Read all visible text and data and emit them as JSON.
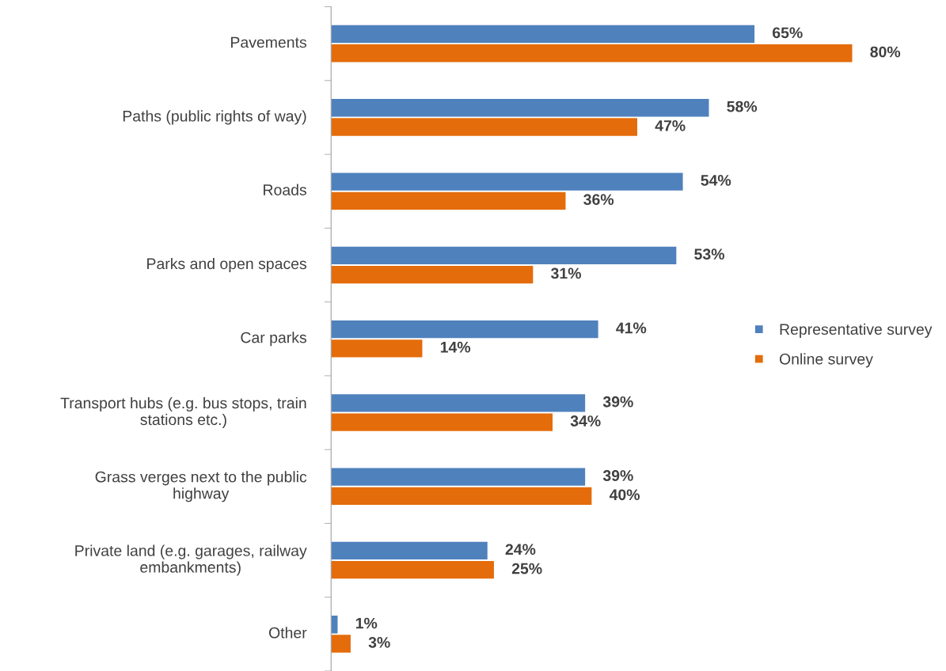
{
  "chart_data": {
    "type": "bar",
    "orientation": "horizontal",
    "categories": [
      "Pavements",
      "Paths (public rights of way)",
      "Roads",
      "Parks and open spaces",
      "Car parks",
      "Transport hubs (e.g. bus stops, train\nstations etc.)",
      "Grass verges next to the public\nhighway",
      "Private land (e.g. garages, railway\nembankments)",
      "Other"
    ],
    "series": [
      {
        "name": "Representative survey",
        "color": "#4f81bd",
        "values": [
          65,
          58,
          54,
          53,
          41,
          39,
          39,
          24,
          1
        ],
        "value_labels": [
          "65%",
          "58%",
          "54%",
          "53%",
          "41%",
          "39%",
          "39%",
          "24%",
          "1%"
        ]
      },
      {
        "name": "Online survey",
        "color": "#e46c0a",
        "values": [
          80,
          47,
          36,
          31,
          14,
          34,
          40,
          25,
          3
        ],
        "value_labels": [
          "80%",
          "47%",
          "36%",
          "31%",
          "14%",
          "34%",
          "40%",
          "25%",
          "3%"
        ]
      }
    ],
    "legend": "right",
    "tick_labels": "y"
  }
}
